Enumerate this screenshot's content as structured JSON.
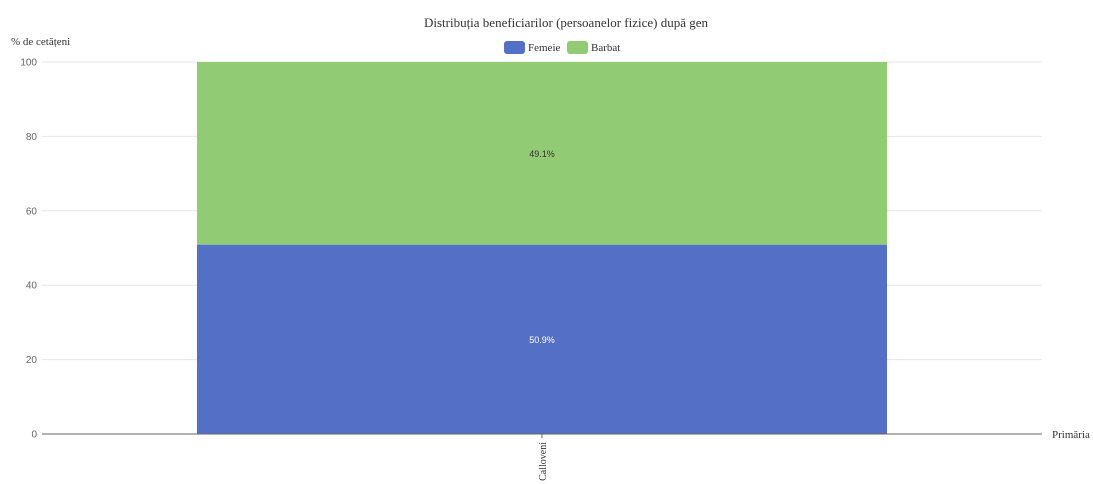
{
  "chart_data": {
    "type": "bar",
    "stacked": true,
    "title": "Distribuția beneficiarilor (persoanelor fizice) după gen",
    "ylabel": "% de cetățeni",
    "xlabel": "Primăria",
    "ylim": [
      0,
      100
    ],
    "yticks": [
      0,
      20,
      40,
      60,
      80,
      100
    ],
    "grid": true,
    "legend_position": "top",
    "categories": [
      "Calloveni"
    ],
    "series": [
      {
        "name": "Femeie",
        "values": [
          50.9
        ],
        "label": "50.9%",
        "color": "#5470c6"
      },
      {
        "name": "Barbat",
        "values": [
          49.1
        ],
        "label": "49.1%",
        "color": "#91cc75"
      }
    ]
  }
}
